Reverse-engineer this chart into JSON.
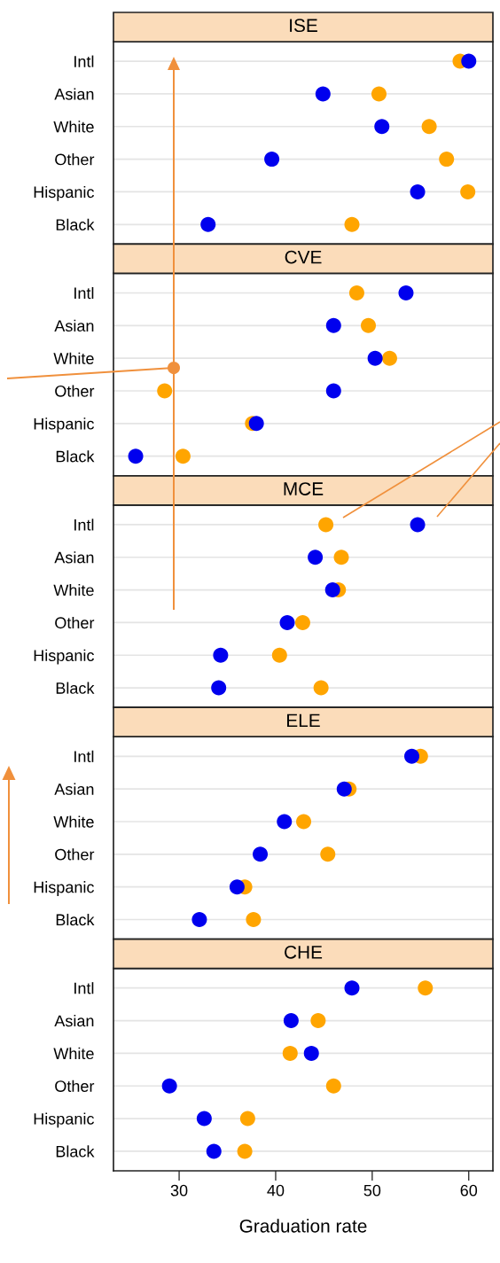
{
  "chart_data": [
    {
      "type": "scatter",
      "title": "ISE",
      "orientation": "horizontal",
      "marker": "circle",
      "grid": "y",
      "tick_labels": "y",
      "categories": [
        "Intl",
        "Asian",
        "White",
        "Other",
        "Hispanic",
        "Black"
      ],
      "xlim": [
        23.2,
        62.5
      ],
      "xticks": [
        30,
        40,
        50,
        60
      ],
      "series": [
        {
          "color": "#ffa500",
          "values": [
            59.1,
            50.7,
            55.9,
            57.7,
            59.9,
            47.9
          ]
        },
        {
          "color": "#0000ee",
          "values": [
            60.0,
            44.9,
            51.0,
            39.6,
            54.7,
            33.0
          ]
        }
      ]
    },
    {
      "type": "scatter",
      "title": "CVE",
      "orientation": "horizontal",
      "marker": "circle",
      "grid": "y",
      "tick_labels": "y",
      "categories": [
        "Intl",
        "Asian",
        "White",
        "Other",
        "Hispanic",
        "Black"
      ],
      "xlim": [
        23.2,
        62.5
      ],
      "xticks": [
        30,
        40,
        50,
        60
      ],
      "series": [
        {
          "color": "#ffa500",
          "values": [
            48.4,
            49.6,
            51.8,
            28.5,
            37.6,
            30.4
          ]
        },
        {
          "color": "#0000ee",
          "values": [
            53.5,
            46.0,
            50.3,
            46.0,
            38.0,
            25.5
          ]
        }
      ]
    },
    {
      "type": "scatter",
      "title": "MCE",
      "orientation": "horizontal",
      "marker": "circle",
      "grid": "y",
      "tick_labels": "y",
      "categories": [
        "Intl",
        "Asian",
        "White",
        "Other",
        "Hispanic",
        "Black"
      ],
      "xlim": [
        23.2,
        62.5
      ],
      "xticks": [
        30,
        40,
        50,
        60
      ],
      "series": [
        {
          "color": "#ffa500",
          "values": [
            45.2,
            46.8,
            46.5,
            42.8,
            40.4,
            44.7
          ]
        },
        {
          "color": "#0000ee",
          "values": [
            54.7,
            44.1,
            45.9,
            41.2,
            34.3,
            34.1
          ]
        }
      ]
    },
    {
      "type": "scatter",
      "title": "ELE",
      "orientation": "horizontal",
      "marker": "circle",
      "grid": "y",
      "tick_labels": "y",
      "categories": [
        "Intl",
        "Asian",
        "White",
        "Other",
        "Hispanic",
        "Black"
      ],
      "xlim": [
        23.2,
        62.5
      ],
      "xticks": [
        30,
        40,
        50,
        60
      ],
      "series": [
        {
          "color": "#ffa500",
          "values": [
            55.0,
            47.6,
            42.9,
            45.4,
            36.8,
            37.7
          ]
        },
        {
          "color": "#0000ee",
          "values": [
            54.1,
            47.1,
            40.9,
            38.4,
            36.0,
            32.1
          ]
        }
      ]
    },
    {
      "type": "scatter",
      "title": "CHE",
      "orientation": "horizontal",
      "marker": "circle",
      "grid": "y",
      "xlabel": "Graduation rate",
      "categories": [
        "Intl",
        "Asian",
        "White",
        "Other",
        "Hispanic",
        "Black"
      ],
      "xlim": [
        23.2,
        62.5
      ],
      "xticks": [
        30,
        40,
        50,
        60
      ],
      "series": [
        {
          "color": "#ffa500",
          "values": [
            55.5,
            44.4,
            41.5,
            46.0,
            37.1,
            36.8
          ]
        },
        {
          "color": "#0000ee",
          "values": [
            47.9,
            41.6,
            43.7,
            29.0,
            32.6,
            33.6
          ]
        }
      ]
    }
  ]
}
